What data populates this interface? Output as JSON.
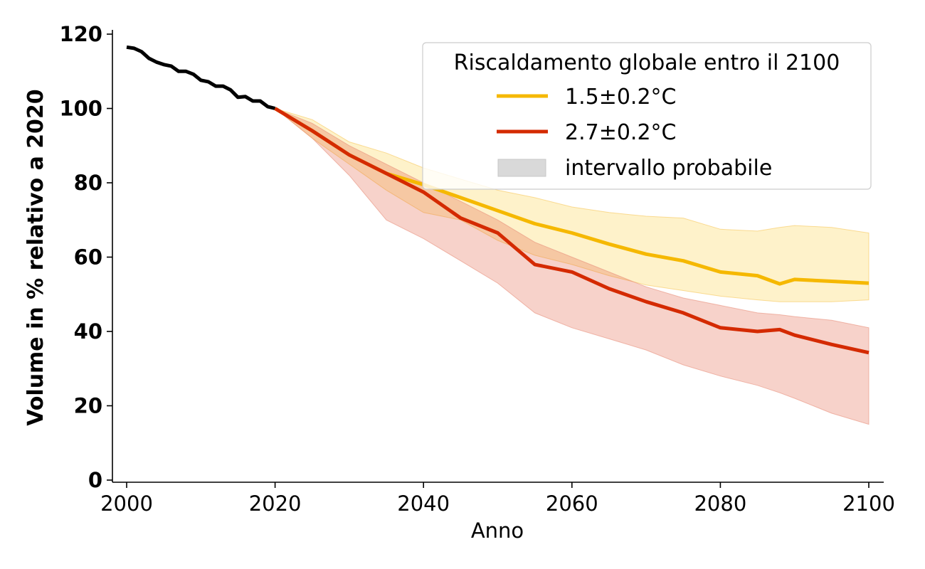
{
  "chart_data": {
    "type": "line",
    "title": "",
    "xlabel": "Anno",
    "ylabel": "Volume in % relativo a 2020",
    "xlim": [
      1998,
      2102
    ],
    "ylim": [
      0,
      120
    ],
    "x_ticks": [
      "2000",
      "2020",
      "2040",
      "2060",
      "2080",
      "2100"
    ],
    "x_tick_values": [
      2000,
      2020,
      2040,
      2060,
      2080,
      2100
    ],
    "y_ticks": [
      "0",
      "20",
      "40",
      "60",
      "80",
      "100",
      "120"
    ],
    "y_tick_values": [
      0,
      20,
      40,
      60,
      80,
      100,
      120
    ],
    "grid": false,
    "legend": {
      "title": "Riscaldamento globale entro il 2100",
      "placement": "top-right",
      "entries": [
        {
          "label": "1.5±0.2°C",
          "kind": "line",
          "color": "#f5b800"
        },
        {
          "label": "2.7±0.2°C",
          "kind": "line",
          "color": "#d42a00"
        },
        {
          "label": "intervallo probabile",
          "kind": "patch",
          "color": "#d9d9d9"
        }
      ]
    },
    "historical": {
      "name": "storico",
      "color": "#000000",
      "x": [
        2000,
        2001,
        2002,
        2003,
        2004,
        2005,
        2006,
        2007,
        2008,
        2009,
        2010,
        2011,
        2012,
        2013,
        2014,
        2015,
        2016,
        2017,
        2018,
        2019,
        2020
      ],
      "y": [
        116.5,
        116.2,
        115.3,
        113.5,
        112.5,
        111.8,
        111.4,
        110.0,
        110.0,
        109.2,
        107.6,
        107.2,
        106.0,
        106.0,
        105.0,
        103.0,
        103.2,
        102.0,
        102.0,
        100.5,
        100.0
      ]
    },
    "series": [
      {
        "name": "1.5±0.2°C",
        "color": "#f5b800",
        "band_color": "#fdebb0",
        "x": [
          2020,
          2025,
          2030,
          2035,
          2040,
          2045,
          2050,
          2055,
          2060,
          2065,
          2070,
          2075,
          2080,
          2085,
          2088,
          2090,
          2095,
          2100
        ],
        "y": [
          100,
          94,
          87.5,
          82.5,
          79.5,
          76,
          72.5,
          69,
          66.5,
          63.5,
          60.8,
          59,
          56,
          55,
          52.8,
          54,
          53.5,
          53
        ],
        "lower": [
          100,
          92,
          85,
          78,
          72,
          70,
          64.5,
          60.5,
          58,
          55,
          52.5,
          51,
          49.5,
          48.5,
          48,
          48,
          48,
          48.5
        ],
        "upper": [
          100,
          97,
          91,
          88,
          84,
          81,
          78,
          76,
          73.5,
          72,
          71,
          70.5,
          67.5,
          67,
          68,
          68.5,
          68,
          66.5
        ]
      },
      {
        "name": "2.7±0.2°C",
        "color": "#d42a00",
        "band_color": "#f2c9c3",
        "x": [
          2020,
          2025,
          2030,
          2035,
          2040,
          2045,
          2050,
          2055,
          2060,
          2065,
          2070,
          2075,
          2080,
          2085,
          2088,
          2090,
          2095,
          2100
        ],
        "y": [
          100,
          94,
          87.5,
          82.5,
          77.5,
          70.5,
          66.5,
          58,
          56,
          51.5,
          48,
          45,
          41,
          40,
          40.5,
          39,
          36.5,
          34.3
        ],
        "lower": [
          100,
          92,
          82,
          70,
          65,
          59,
          53,
          45,
          41,
          38,
          35,
          31,
          28,
          25.5,
          23.5,
          22,
          18,
          15
        ],
        "upper": [
          100,
          96,
          90,
          85,
          80,
          75,
          70,
          64,
          60,
          56,
          52,
          49,
          47,
          45,
          44.5,
          44,
          43,
          41
        ]
      }
    ]
  }
}
